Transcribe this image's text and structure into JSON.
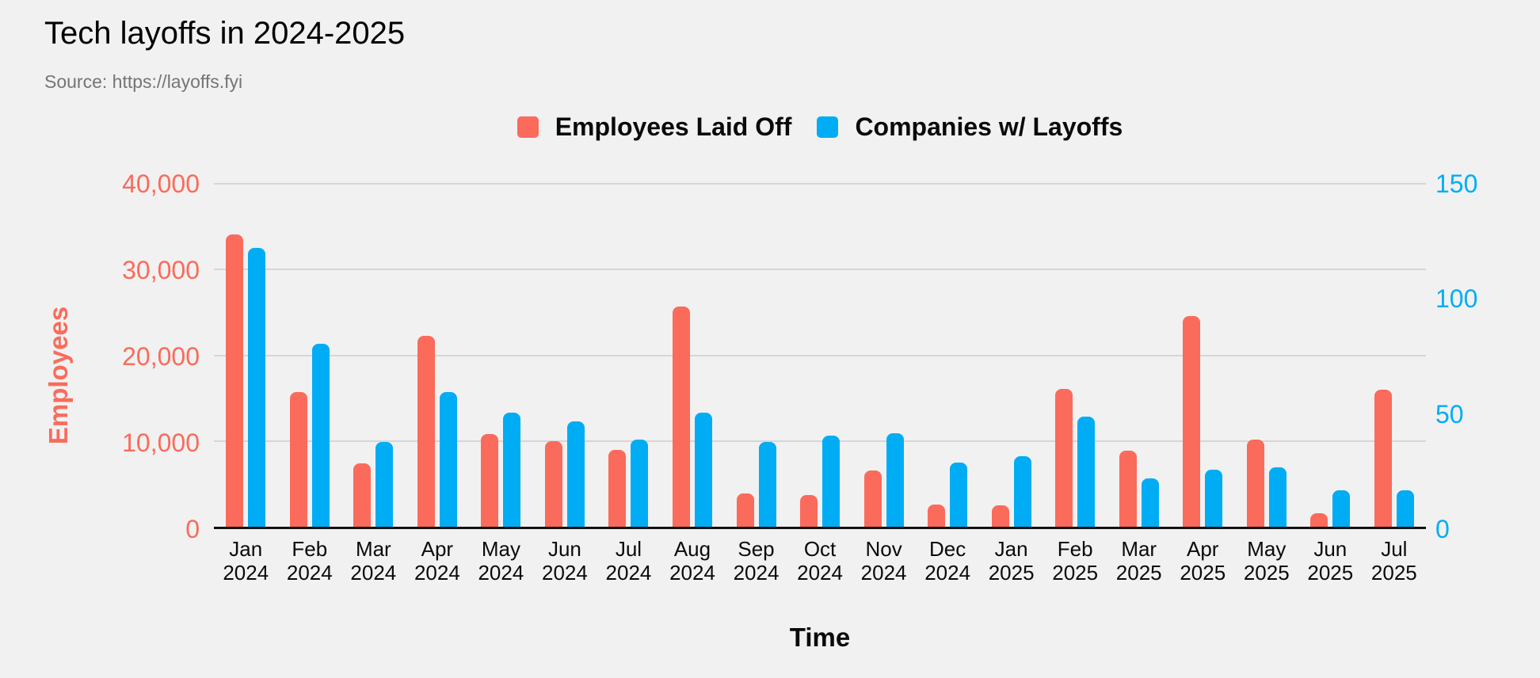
{
  "header": {
    "title": "Tech layoffs in 2024-2025",
    "source": "Source: https://layoffs.fyi"
  },
  "colors": {
    "background": "#F1F1F1",
    "employees": "#FA6B5C",
    "companies": "#00ADF4",
    "gridline": "#D6D6D6",
    "baseline": "#111111",
    "text": "#0A0A0A",
    "muted_text": "#757575"
  },
  "chart_data": {
    "type": "bar",
    "title": "Tech layoffs in 2024-2025",
    "source": "Source: https://layoffs.fyi",
    "xlabel": "Time",
    "grid": true,
    "legend_position": "top",
    "categories": [
      "Jan 2024",
      "Feb 2024",
      "Mar 2024",
      "Apr 2024",
      "May 2024",
      "Jun 2024",
      "Jul 2024",
      "Aug 2024",
      "Sep 2024",
      "Oct 2024",
      "Nov 2024",
      "Dec 2024",
      "Jan 2025",
      "Feb 2025",
      "Mar 2025",
      "Apr 2025",
      "May 2025",
      "Jun 2025",
      "Jul 2025"
    ],
    "series": [
      {
        "name": "Employees Laid Off",
        "axis": "left",
        "color": "#FA6B5C",
        "values": [
          34100,
          15700,
          7400,
          22300,
          10800,
          10000,
          9000,
          25700,
          3900,
          3700,
          6600,
          2600,
          2500,
          16100,
          8900,
          24600,
          10200,
          1600,
          16000
        ]
      },
      {
        "name": "Companies w/ Layoffs",
        "axis": "right",
        "color": "#00ADF4",
        "values": [
          122,
          80,
          37,
          59,
          50,
          46,
          38,
          50,
          37,
          40,
          41,
          28,
          31,
          48,
          21,
          25,
          26,
          16,
          16
        ]
      }
    ],
    "left_axis": {
      "title": "Employees",
      "ticks": [
        "0",
        "10,000",
        "20,000",
        "30,000",
        "40,000"
      ],
      "range": [
        0,
        40000
      ],
      "color": "#FA6B5C"
    },
    "right_axis": {
      "ticks": [
        "0",
        "50",
        "100",
        "150"
      ],
      "range": [
        0,
        150
      ],
      "color": "#00ADF4"
    }
  }
}
